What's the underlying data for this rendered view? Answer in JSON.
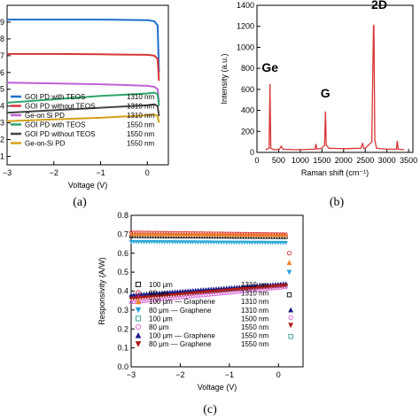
{
  "panel_labels": [
    "(a)",
    "(b)",
    "(c)"
  ],
  "chart_data": [
    {
      "type": "line",
      "panel": "(a)",
      "xlabel": "Voltage (V)",
      "ylabel": "",
      "xlim": [
        -3,
        0.45
      ],
      "ylim": [
        0.05,
        1.0
      ],
      "xticks": [
        "−3",
        "−2",
        "−1",
        "0"
      ],
      "xtick_values": [
        -3,
        -2,
        -1,
        0
      ],
      "yticks": [
        ".1",
        ".2",
        ".3",
        ".4",
        ".5",
        ".6",
        ".7",
        ".8",
        ".9"
      ],
      "ytick_values": [
        0.1,
        0.2,
        0.3,
        0.4,
        0.5,
        0.6,
        0.7,
        0.8,
        0.9
      ],
      "legend_position": "bottom-left",
      "series": [
        {
          "name": "GOI PD with TEOS",
          "wavelength": "1310 nm",
          "color": "#1f6fc9",
          "x": [
            -3,
            -2,
            -1,
            0,
            0.15,
            0.22,
            0.25
          ],
          "y": [
            0.915,
            0.915,
            0.915,
            0.912,
            0.905,
            0.88,
            0.6
          ]
        },
        {
          "name": "GOI PD without TEOS",
          "wavelength": "1310 nm",
          "color": "#d93636",
          "x": [
            -3,
            -2,
            -1,
            0,
            0.15,
            0.22,
            0.25
          ],
          "y": [
            0.71,
            0.71,
            0.708,
            0.705,
            0.7,
            0.68,
            0.55
          ]
        },
        {
          "name": "Ge-on Si PD",
          "wavelength": "1310 nm",
          "color": "#c060d8",
          "x": [
            -3,
            -2,
            -1,
            0,
            0.15,
            0.22,
            0.25
          ],
          "y": [
            0.54,
            0.535,
            0.53,
            0.52,
            0.515,
            0.5,
            0.42
          ]
        },
        {
          "name": "GOI PD with TEOS",
          "wavelength": "1550 nm",
          "color": "#2ca56a",
          "x": [
            -3,
            -2,
            -1,
            0,
            0.15,
            0.22,
            0.25
          ],
          "y": [
            0.42,
            0.44,
            0.46,
            0.475,
            0.48,
            0.47,
            0.4
          ]
        },
        {
          "name": "GOI PD without TEOS",
          "wavelength": "1550 nm",
          "color": "#444444",
          "x": [
            -3,
            -2,
            -1,
            0,
            0.15,
            0.22,
            0.25
          ],
          "y": [
            0.36,
            0.375,
            0.39,
            0.405,
            0.41,
            0.4,
            0.34
          ]
        },
        {
          "name": "Ge-on-Si PD",
          "wavelength": "1550 nm",
          "color": "#d4a017",
          "x": [
            -3,
            -2,
            -1,
            0,
            0.15,
            0.22,
            0.25
          ],
          "y": [
            0.31,
            0.32,
            0.33,
            0.345,
            0.35,
            0.34,
            0.3
          ]
        }
      ]
    },
    {
      "type": "line",
      "panel": "(b)",
      "xlabel": "Raman shift (cm⁻¹)",
      "ylabel": "Intensity (a.u.)",
      "xlim": [
        0,
        3600
      ],
      "ylim": [
        0,
        1400
      ],
      "xticks": [
        "0",
        "500",
        "1000",
        "1500",
        "2000",
        "2500",
        "3000",
        "3500"
      ],
      "xtick_values": [
        0,
        500,
        1000,
        1500,
        2000,
        2500,
        3000,
        3500
      ],
      "yticks": [
        "0",
        "200",
        "400",
        "600",
        "800",
        "1000",
        "1200",
        "1400"
      ],
      "ytick_values": [
        0,
        200,
        400,
        600,
        800,
        1000,
        1200,
        1400
      ],
      "annotations": [
        {
          "text": "Ge",
          "x": 300,
          "y": 700
        },
        {
          "text": "G",
          "x": 1580,
          "y": 440
        },
        {
          "text": "2D",
          "x": 2700,
          "y": 1280
        }
      ],
      "series": [
        {
          "name": "",
          "color": "#d93636",
          "x": [
            200,
            280,
            300,
            320,
            400,
            520,
            560,
            600,
            900,
            1340,
            1360,
            1380,
            1500,
            1560,
            1582,
            1600,
            1660,
            2000,
            2400,
            2440,
            2460,
            2500,
            2650,
            2690,
            2700,
            2720,
            2760,
            3000,
            3220,
            3240,
            3260,
            3400
          ],
          "y": [
            25,
            40,
            650,
            40,
            25,
            30,
            60,
            30,
            25,
            30,
            80,
            30,
            40,
            70,
            390,
            70,
            40,
            35,
            40,
            90,
            40,
            40,
            100,
            1200,
            1215,
            120,
            40,
            30,
            30,
            110,
            30,
            25
          ]
        }
      ]
    },
    {
      "type": "scatter",
      "panel": "(c)",
      "xlabel": "Voltage (V)",
      "ylabel": "Responsivity (A/W)",
      "xlim": [
        -3,
        0.5
      ],
      "ylim": [
        0,
        0.8
      ],
      "xticks": [
        "−3",
        "−2",
        "−1",
        "0"
      ],
      "xtick_values": [
        -3,
        -2,
        -1,
        0
      ],
      "yticks": [
        "0.0",
        "0.1",
        "0.2",
        "0.3",
        "0.4",
        "0.5",
        "0.6",
        "0.7",
        "0.8"
      ],
      "ytick_values": [
        0,
        0.1,
        0.2,
        0.3,
        0.4,
        0.5,
        0.6,
        0.7,
        0.8
      ],
      "legend_position": "bottom-left",
      "series": [
        {
          "name": "100 μm",
          "wavelength": "1310 nm",
          "marker": "square",
          "color": "#000000",
          "start": 0.69,
          "end": 0.685,
          "drop_x": 0.22,
          "drop": 0.38
        },
        {
          "name": "80 μm",
          "wavelength": "1310 nm",
          "marker": "circle",
          "color": "#d93636",
          "start": 0.71,
          "end": 0.7,
          "drop_x": 0.22,
          "drop": 0.6
        },
        {
          "name": "100 μm — Graphene",
          "wavelength": "1310 nm",
          "marker": "triangle-up",
          "color": "#f0842c",
          "start": 0.7,
          "end": 0.695,
          "drop_x": 0.22,
          "drop": 0.55
        },
        {
          "name": "80 μm — Graphene",
          "wavelength": "1310 nm",
          "marker": "triangle-down",
          "color": "#2aa6d8",
          "start": 0.66,
          "end": 0.655,
          "drop_x": 0.22,
          "drop": 0.5
        },
        {
          "name": "100 μm",
          "wavelength": "1500 nm",
          "marker": "square",
          "color": "#2c9a8e",
          "start": 0.37,
          "end": 0.43,
          "drop_x": 0.25,
          "drop": 0.16
        },
        {
          "name": "80 μm",
          "wavelength": "1550 nm",
          "marker": "circle",
          "color": "#d860d8",
          "start": 0.34,
          "end": 0.42,
          "drop_x": 0.25,
          "drop": 0.26
        },
        {
          "name": "100 μm — Graphene",
          "wavelength": "1550 nm",
          "marker": "triangle-up",
          "color": "#1a1a8a",
          "start": 0.38,
          "end": 0.44,
          "drop_x": 0.25,
          "drop": 0.3
        },
        {
          "name": "80 μm — Graphene",
          "wavelength": "1550 nm",
          "marker": "triangle-down",
          "color": "#b01818",
          "start": 0.36,
          "end": 0.43,
          "drop_x": 0.25,
          "drop": 0.22
        }
      ]
    }
  ]
}
